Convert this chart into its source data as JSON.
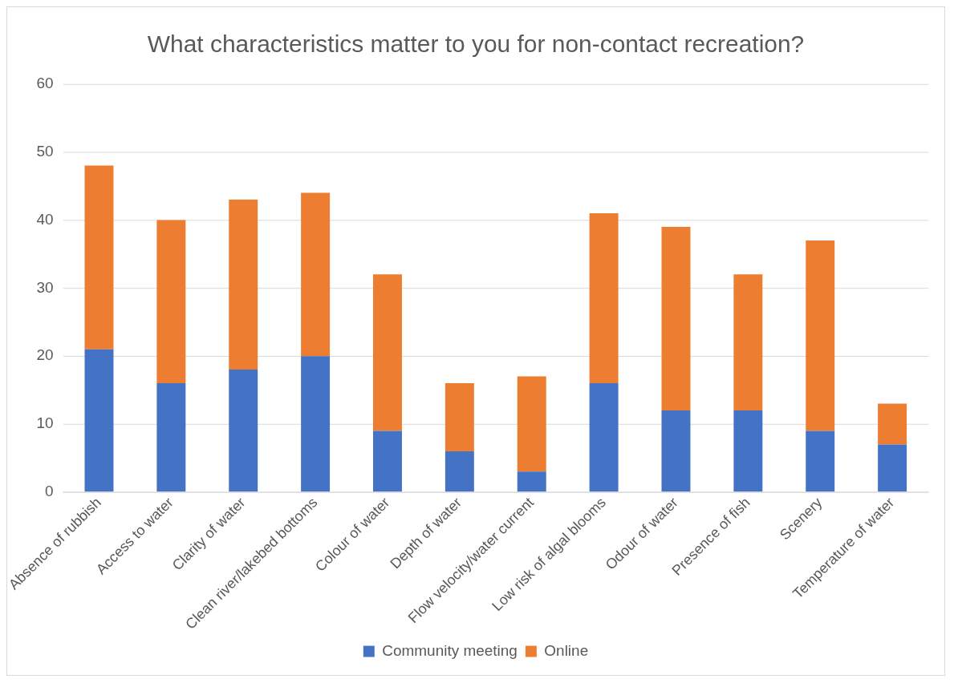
{
  "chart_data": {
    "type": "bar",
    "title": "What characteristics matter to you for non-contact recreation?",
    "stacked": true,
    "categories": [
      "Absence of rubbish",
      "Access to water",
      "Clarity of water",
      "Clean river/lakebed bottoms",
      "Colour of water",
      "Depth of water",
      "Flow velocity/water current",
      "Low risk of algal blooms",
      "Odour of water",
      "Presence of fish",
      "Scenery",
      "Temperature of water"
    ],
    "series": [
      {
        "name": "Community meeting",
        "color": "#4472c4",
        "values": [
          21,
          16,
          18,
          20,
          9,
          6,
          3,
          16,
          12,
          12,
          9,
          7
        ]
      },
      {
        "name": "Online",
        "color": "#ed7d31",
        "values": [
          27,
          24,
          25,
          24,
          23,
          10,
          14,
          25,
          27,
          20,
          28,
          6
        ]
      }
    ],
    "ylim": [
      0,
      60
    ],
    "yticks": [
      0,
      10,
      20,
      30,
      40,
      50,
      60
    ],
    "grid": "y",
    "legend": "bottom"
  }
}
